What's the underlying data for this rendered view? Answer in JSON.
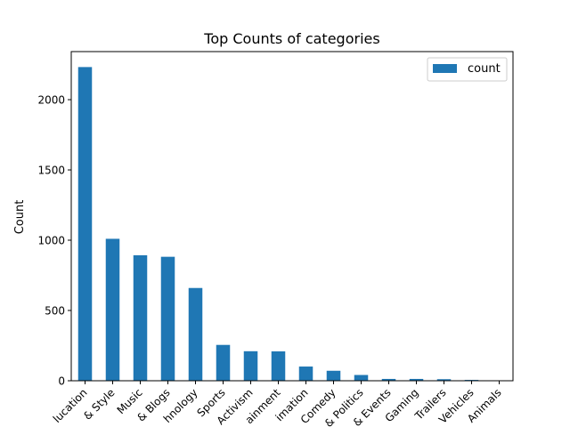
{
  "chart_data": {
    "type": "bar",
    "title": "Top Counts of categories",
    "xlabel": "",
    "ylabel": "Count",
    "categories_visible": [
      "lucation",
      "& Style",
      "Music",
      "& Blogs",
      "hnology",
      "Sports",
      "Activism",
      "ainment",
      "imation",
      "Comedy",
      "& Politics",
      "& Events",
      "Gaming",
      "Trailers",
      "Vehicles",
      "Animals"
    ],
    "series": [
      {
        "name": "count",
        "color": "#1f77b4",
        "values": [
          2232,
          1010,
          893,
          882,
          660,
          255,
          210,
          209,
          101,
          71,
          41,
          13,
          13,
          11,
          6,
          2
        ]
      }
    ],
    "ylim": [
      0,
      2342
    ],
    "yticks": [
      0,
      500,
      1000,
      1500,
      2000
    ],
    "grid": false,
    "legend": "top-right"
  }
}
